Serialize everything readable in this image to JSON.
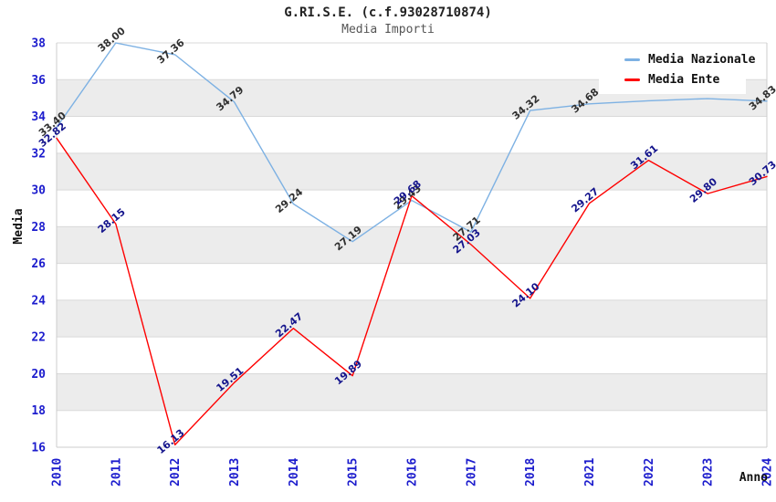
{
  "header": {
    "title": "G.RI.S.E. (c.f.93028710874)",
    "subtitle": "Media Importi"
  },
  "legend": {
    "items": [
      {
        "label": "Media Nazionale",
        "color": "#7db1e3"
      },
      {
        "label": "Media Ente",
        "color": "#fe0000"
      }
    ],
    "position": "top-right"
  },
  "axes": {
    "y_label": "Media",
    "x_label": "Anno",
    "y_ticks": [
      "16",
      "18",
      "20",
      "22",
      "24",
      "26",
      "28",
      "30",
      "32",
      "34",
      "36",
      "38"
    ],
    "x_ticks": [
      "2010",
      "2011",
      "2012",
      "2013",
      "2014",
      "2015",
      "2016",
      "2017",
      "2018",
      "2021",
      "2022",
      "2023",
      "2024"
    ]
  },
  "chart_data": {
    "type": "line",
    "x": [
      "2010",
      "2011",
      "2012",
      "2013",
      "2014",
      "2015",
      "2016",
      "2017",
      "2018",
      "2021",
      "2022",
      "2023",
      "2024"
    ],
    "xlabel": "Anno",
    "ylabel": "Media",
    "ylim": [
      16,
      38
    ],
    "ytick_step": 2,
    "grid": "horizontal gridlines with alternating gray bands",
    "legend_position": "top-right",
    "title": "G.RI.S.E. (c.f.93028710874)",
    "subtitle": "Media Importi",
    "series": [
      {
        "name": "Media Nazionale",
        "color": "#7db1e3",
        "label_color": "#303030",
        "values": [
          33.4,
          38.0,
          37.36,
          34.79,
          29.24,
          27.19,
          29.43,
          27.71,
          34.32,
          34.68,
          34.85,
          34.97,
          34.83
        ],
        "point_labels": [
          "33.40",
          "38.00",
          "37.36",
          "34.79",
          "29.24",
          "27.19",
          "29.43",
          "27.71",
          "34.32",
          "34.68",
          "",
          "",
          "34.83"
        ]
      },
      {
        "name": "Media Ente",
        "color": "#fe0000",
        "label_color": "#14148c",
        "values": [
          32.82,
          28.15,
          16.13,
          19.51,
          22.47,
          19.89,
          29.68,
          27.03,
          24.1,
          29.27,
          31.61,
          29.8,
          30.73
        ],
        "point_labels": [
          "32.82",
          "28.15",
          "16.13",
          "19.51",
          "22.47",
          "19.89",
          "29.68",
          "27.03",
          "24.10",
          "29.27",
          "31.61",
          "29.80",
          "30.73"
        ]
      }
    ]
  },
  "colors": {
    "background": "#ffffff",
    "band": "#ececec",
    "grid": "#d9d9d9",
    "plot_border": "#cccccc",
    "tick_text": "#1c1ccd",
    "axis_title": "#111111",
    "title": "#222222",
    "subtitle": "#555555"
  }
}
